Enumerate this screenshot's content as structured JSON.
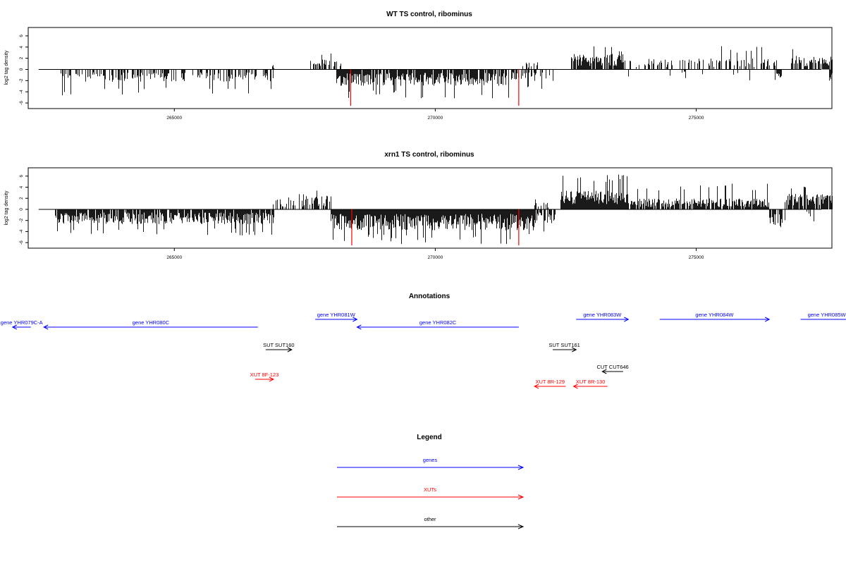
{
  "colors": {
    "genes": "#0000ff",
    "XUTs": "#ff0000",
    "other": "#000000",
    "highlight": "#ff0000"
  },
  "chart_data": [
    {
      "type": "bar",
      "title": "WT TS control, ribominus",
      "ylabel": "log2 tag density",
      "xlim": [
        262200,
        277600
      ],
      "ylim": [
        -7,
        7.5
      ],
      "x_ticks": [
        265000,
        270000,
        275000
      ],
      "x_tick_labels": [
        "265000",
        "270000",
        "275000"
      ],
      "y_ticks": [
        -6,
        -4,
        -2,
        0,
        2,
        4,
        6
      ],
      "y_tick_labels": [
        "-6",
        "-4",
        "-2",
        "0",
        "2",
        "4",
        "6"
      ],
      "baseline_range": [
        262400,
        277400
      ],
      "segments": [
        {
          "from": 262800,
          "to": 264800,
          "sign": -1,
          "density": 0.45,
          "mean": 1.6,
          "max": 4.8,
          "seed": 11
        },
        {
          "from": 264800,
          "to": 266900,
          "sign": -1,
          "density": 0.42,
          "mean": 1.6,
          "max": 4.6,
          "seed": 12
        },
        {
          "from": 266850,
          "to": 266900,
          "sign": 1,
          "density": 0.8,
          "mean": 0.8,
          "max": 1.2,
          "seed": 13
        },
        {
          "from": 267600,
          "to": 268200,
          "sign": 1,
          "density": 0.35,
          "mean": 1.3,
          "max": 3.2,
          "seed": 14
        },
        {
          "from": 268100,
          "to": 271400,
          "sign": -1,
          "density": 0.85,
          "mean": 2.1,
          "max": 5.2,
          "seed": 15
        },
        {
          "from": 271450,
          "to": 272300,
          "sign": -1,
          "density": 0.35,
          "mean": 1.6,
          "max": 4.3,
          "seed": 16
        },
        {
          "from": 271600,
          "to": 271950,
          "sign": 1,
          "density": 0.35,
          "mean": 0.9,
          "max": 1.4,
          "seed": 17
        },
        {
          "from": 272600,
          "to": 273600,
          "sign": 1,
          "density": 0.9,
          "mean": 2.0,
          "max": 4.5,
          "seed": 18
        },
        {
          "from": 273600,
          "to": 276600,
          "sign": 1,
          "density": 0.32,
          "mean": 1.4,
          "max": 4.2,
          "seed": 19
        },
        {
          "from": 273700,
          "to": 276200,
          "sign": -1,
          "density": 0.06,
          "mean": 1.2,
          "max": 2.0,
          "seed": 20
        },
        {
          "from": 276500,
          "to": 276650,
          "sign": -1,
          "density": 0.8,
          "mean": 1.8,
          "max": 3.2,
          "seed": 21
        },
        {
          "from": 276800,
          "to": 277600,
          "sign": 1,
          "density": 0.7,
          "mean": 1.8,
          "max": 4.8,
          "seed": 22
        },
        {
          "from": 277550,
          "to": 277600,
          "sign": -1,
          "density": 1.0,
          "mean": 2.0,
          "max": 2.4,
          "seed": 23
        }
      ],
      "highlight_x": [
        268380,
        271600
      ],
      "highlight_y": -6.5
    },
    {
      "type": "bar",
      "title": "xrn1 TS control, ribominus",
      "ylabel": "log2 tag density",
      "xlim": [
        262200,
        277600
      ],
      "ylim": [
        -7,
        7.5
      ],
      "x_ticks": [
        265000,
        270000,
        275000
      ],
      "x_tick_labels": [
        "265000",
        "270000",
        "275000"
      ],
      "y_ticks": [
        -6,
        -4,
        -2,
        0,
        2,
        4,
        6
      ],
      "y_tick_labels": [
        "-6",
        "-4",
        "-2",
        "0",
        "2",
        "4",
        "6"
      ],
      "baseline_range": [
        262400,
        277400
      ],
      "segments": [
        {
          "from": 262700,
          "to": 266900,
          "sign": -1,
          "density": 0.9,
          "mean": 1.9,
          "max": 4.8,
          "seed": 31
        },
        {
          "from": 266850,
          "to": 267500,
          "sign": 1,
          "density": 0.35,
          "mean": 1.3,
          "max": 2.8,
          "seed": 32
        },
        {
          "from": 267500,
          "to": 268000,
          "sign": 1,
          "density": 0.5,
          "mean": 1.8,
          "max": 4.3,
          "seed": 33
        },
        {
          "from": 268000,
          "to": 271900,
          "sign": -1,
          "density": 1.0,
          "mean": 2.7,
          "max": 6.3,
          "seed": 34
        },
        {
          "from": 271900,
          "to": 272300,
          "sign": -1,
          "density": 0.5,
          "mean": 1.8,
          "max": 4.0,
          "seed": 35
        },
        {
          "from": 271900,
          "to": 272200,
          "sign": 1,
          "density": 0.25,
          "mean": 1.0,
          "max": 2.0,
          "seed": 36
        },
        {
          "from": 272400,
          "to": 273700,
          "sign": 1,
          "density": 1.0,
          "mean": 2.4,
          "max": 6.5,
          "seed": 37
        },
        {
          "from": 273700,
          "to": 276400,
          "sign": 1,
          "density": 0.8,
          "mean": 1.4,
          "max": 4.8,
          "seed": 38
        },
        {
          "from": 276400,
          "to": 276700,
          "sign": -1,
          "density": 0.8,
          "mean": 2.2,
          "max": 3.9,
          "seed": 39
        },
        {
          "from": 276700,
          "to": 277600,
          "sign": 1,
          "density": 0.9,
          "mean": 2.0,
          "max": 5.0,
          "seed": 40
        },
        {
          "from": 277000,
          "to": 277500,
          "sign": -1,
          "density": 0.15,
          "mean": 1.4,
          "max": 2.6,
          "seed": 41
        }
      ],
      "highlight_x": [
        268400,
        271600
      ],
      "highlight_y": -6.5
    }
  ],
  "annotations": {
    "title": "Annotations",
    "rows": [
      [
        {
          "label": "gene YHR081W",
          "kind": "genes",
          "start": 267700,
          "end": 268500,
          "dir": "right"
        },
        {
          "label": "gene YHR083W",
          "kind": "genes",
          "start": 272700,
          "end": 273700,
          "dir": "right"
        },
        {
          "label": "gene YHR084W",
          "kind": "genes",
          "start": 274300,
          "end": 276400,
          "dir": "right"
        },
        {
          "label": "gene YHR085W",
          "kind": "genes",
          "start": 277000,
          "end": 278000,
          "dir": "right"
        }
      ],
      [
        {
          "label": "gene YHR079C-A",
          "kind": "genes",
          "start": 261900,
          "end": 262250,
          "dir": "left"
        },
        {
          "label": "gene YHR080C",
          "kind": "genes",
          "start": 262500,
          "end": 266600,
          "dir": "left"
        },
        {
          "label": "gene YHR082C",
          "kind": "genes",
          "start": 268500,
          "end": 271600,
          "dir": "left"
        }
      ],
      [
        {
          "label": "SUT SUT160",
          "kind": "other",
          "start": 266750,
          "end": 267250,
          "dir": "right"
        },
        {
          "label": "SUT SUT161",
          "kind": "other",
          "start": 272250,
          "end": 272700,
          "dir": "right"
        }
      ],
      [
        {
          "label": "CUT CUT646",
          "kind": "other",
          "start": 273200,
          "end": 273600,
          "dir": "left"
        }
      ],
      [
        {
          "label": "XUT 8F-123",
          "kind": "XUTs",
          "start": 266550,
          "end": 266900,
          "dir": "right"
        }
      ],
      [
        {
          "label": "XUT 8R-129",
          "kind": "XUTs",
          "start": 271900,
          "end": 272500,
          "dir": "left"
        },
        {
          "label": "XUT 8R-130",
          "kind": "XUTs",
          "start": 272650,
          "end": 273300,
          "dir": "left"
        }
      ]
    ]
  },
  "legend": {
    "title": "Legend",
    "items": [
      {
        "label": "genes",
        "kind": "genes"
      },
      {
        "label": "XUTs",
        "kind": "XUTs"
      },
      {
        "label": "other",
        "kind": "other"
      }
    ]
  }
}
